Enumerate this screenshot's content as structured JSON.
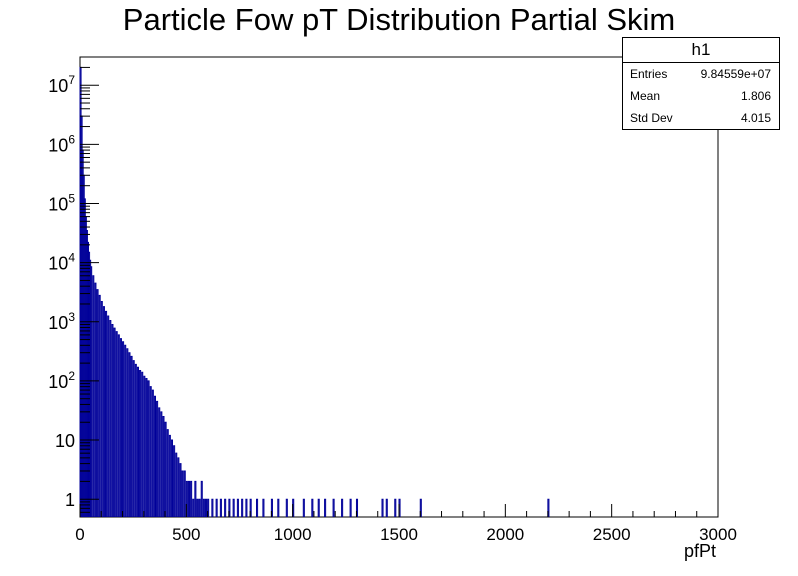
{
  "chart_data": {
    "type": "bar",
    "title": "Particle Fow pT Distribution Partial Skim",
    "xlabel": "pfPt",
    "ylabel": "",
    "xlim": [
      0,
      3000
    ],
    "ylim": [
      0.5,
      30000000
    ],
    "yscale": "log",
    "grid": false,
    "style": "step-histogram",
    "line_color": "#000099",
    "x_ticks": [
      "0",
      "500",
      "1000",
      "1500",
      "2000",
      "2500",
      "3000"
    ],
    "x_tick_values": [
      0,
      500,
      1000,
      1500,
      2000,
      2500,
      3000
    ],
    "y_ticks": [
      {
        "value": 1,
        "base": "1",
        "exp": ""
      },
      {
        "value": 10,
        "base": "10",
        "exp": ""
      },
      {
        "value": 100,
        "base": "10",
        "exp": "2"
      },
      {
        "value": 1000,
        "base": "10",
        "exp": "3"
      },
      {
        "value": 10000,
        "base": "10",
        "exp": "4"
      },
      {
        "value": 100000,
        "base": "10",
        "exp": "5"
      },
      {
        "value": 1000000,
        "base": "10",
        "exp": "6"
      },
      {
        "value": 10000000,
        "base": "10",
        "exp": "7"
      }
    ],
    "bin_width": 5,
    "series": [
      {
        "values": [
          [
            0,
            20000000
          ],
          [
            5,
            3000000
          ],
          [
            10,
            800000
          ],
          [
            15,
            300000
          ],
          [
            20,
            120000
          ],
          [
            25,
            60000
          ],
          [
            30,
            35000
          ],
          [
            35,
            22000
          ],
          [
            40,
            15000
          ],
          [
            45,
            11000
          ],
          [
            50,
            8500
          ],
          [
            60,
            6000
          ],
          [
            70,
            4500
          ],
          [
            80,
            3500
          ],
          [
            90,
            2800
          ],
          [
            100,
            2200
          ],
          [
            110,
            1800
          ],
          [
            120,
            1500
          ],
          [
            130,
            1250
          ],
          [
            140,
            1050
          ],
          [
            150,
            900
          ],
          [
            160,
            780
          ],
          [
            170,
            680
          ],
          [
            180,
            600
          ],
          [
            190,
            520
          ],
          [
            200,
            460
          ],
          [
            210,
            400
          ],
          [
            220,
            350
          ],
          [
            230,
            300
          ],
          [
            240,
            260
          ],
          [
            250,
            220
          ],
          [
            260,
            190
          ],
          [
            270,
            170
          ],
          [
            280,
            150
          ],
          [
            290,
            140
          ],
          [
            300,
            120
          ],
          [
            310,
            110
          ],
          [
            320,
            100
          ],
          [
            330,
            80
          ],
          [
            340,
            70
          ],
          [
            350,
            55
          ],
          [
            360,
            45
          ],
          [
            370,
            35
          ],
          [
            380,
            30
          ],
          [
            390,
            25
          ],
          [
            400,
            20
          ],
          [
            410,
            15
          ],
          [
            420,
            12
          ],
          [
            430,
            10
          ],
          [
            440,
            8
          ],
          [
            450,
            6
          ],
          [
            460,
            5
          ],
          [
            470,
            4
          ],
          [
            480,
            3
          ],
          [
            490,
            3
          ],
          [
            500,
            2
          ],
          [
            510,
            2
          ],
          [
            520,
            2
          ],
          [
            530,
            1
          ],
          [
            540,
            2
          ],
          [
            550,
            1
          ],
          [
            560,
            1
          ],
          [
            570,
            2
          ],
          [
            580,
            1
          ],
          [
            590,
            1
          ],
          [
            600,
            1
          ],
          [
            620,
            1
          ],
          [
            640,
            1
          ],
          [
            660,
            1
          ],
          [
            680,
            1
          ],
          [
            700,
            1
          ],
          [
            720,
            1
          ],
          [
            740,
            1
          ],
          [
            760,
            1
          ],
          [
            780,
            1
          ],
          [
            800,
            1
          ],
          [
            830,
            1
          ],
          [
            860,
            1
          ],
          [
            900,
            1
          ],
          [
            930,
            1
          ],
          [
            970,
            1
          ],
          [
            1000,
            1
          ],
          [
            1050,
            1
          ],
          [
            1090,
            1
          ],
          [
            1120,
            1
          ],
          [
            1150,
            1
          ],
          [
            1190,
            1
          ],
          [
            1230,
            1
          ],
          [
            1270,
            1
          ],
          [
            1300,
            1
          ],
          [
            1420,
            1
          ],
          [
            1440,
            1
          ],
          [
            1480,
            1
          ],
          [
            1500,
            1
          ],
          [
            1600,
            1
          ],
          [
            2200,
            1
          ]
        ]
      }
    ],
    "stats": {
      "name": "h1",
      "rows": [
        {
          "label": "Entries",
          "value": "9.84559e+07"
        },
        {
          "label": "Mean",
          "value": "1.806"
        },
        {
          "label": "Std Dev",
          "value": "4.015"
        }
      ]
    }
  }
}
